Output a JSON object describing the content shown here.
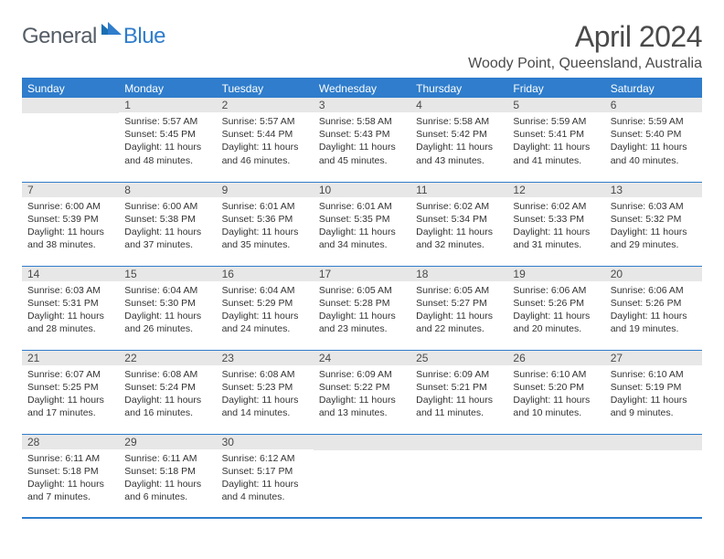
{
  "logo": {
    "general": "General",
    "blue": "Blue"
  },
  "title": "April 2024",
  "location": "Woody Point, Queensland, Australia",
  "weekdays": [
    "Sunday",
    "Monday",
    "Tuesday",
    "Wednesday",
    "Thursday",
    "Friday",
    "Saturday"
  ],
  "colors": {
    "accent": "#2f7dcc",
    "daynum_bg": "#e7e7e7",
    "text": "#333333",
    "header_text": "#4a4a4a"
  },
  "layout": {
    "first_weekday_index": 1,
    "weeks": 5
  },
  "days": [
    {
      "n": 1,
      "sunrise": "5:57 AM",
      "sunset": "5:45 PM",
      "daylight": "11 hours and 48 minutes."
    },
    {
      "n": 2,
      "sunrise": "5:57 AM",
      "sunset": "5:44 PM",
      "daylight": "11 hours and 46 minutes."
    },
    {
      "n": 3,
      "sunrise": "5:58 AM",
      "sunset": "5:43 PM",
      "daylight": "11 hours and 45 minutes."
    },
    {
      "n": 4,
      "sunrise": "5:58 AM",
      "sunset": "5:42 PM",
      "daylight": "11 hours and 43 minutes."
    },
    {
      "n": 5,
      "sunrise": "5:59 AM",
      "sunset": "5:41 PM",
      "daylight": "11 hours and 41 minutes."
    },
    {
      "n": 6,
      "sunrise": "5:59 AM",
      "sunset": "5:40 PM",
      "daylight": "11 hours and 40 minutes."
    },
    {
      "n": 7,
      "sunrise": "6:00 AM",
      "sunset": "5:39 PM",
      "daylight": "11 hours and 38 minutes."
    },
    {
      "n": 8,
      "sunrise": "6:00 AM",
      "sunset": "5:38 PM",
      "daylight": "11 hours and 37 minutes."
    },
    {
      "n": 9,
      "sunrise": "6:01 AM",
      "sunset": "5:36 PM",
      "daylight": "11 hours and 35 minutes."
    },
    {
      "n": 10,
      "sunrise": "6:01 AM",
      "sunset": "5:35 PM",
      "daylight": "11 hours and 34 minutes."
    },
    {
      "n": 11,
      "sunrise": "6:02 AM",
      "sunset": "5:34 PM",
      "daylight": "11 hours and 32 minutes."
    },
    {
      "n": 12,
      "sunrise": "6:02 AM",
      "sunset": "5:33 PM",
      "daylight": "11 hours and 31 minutes."
    },
    {
      "n": 13,
      "sunrise": "6:03 AM",
      "sunset": "5:32 PM",
      "daylight": "11 hours and 29 minutes."
    },
    {
      "n": 14,
      "sunrise": "6:03 AM",
      "sunset": "5:31 PM",
      "daylight": "11 hours and 28 minutes."
    },
    {
      "n": 15,
      "sunrise": "6:04 AM",
      "sunset": "5:30 PM",
      "daylight": "11 hours and 26 minutes."
    },
    {
      "n": 16,
      "sunrise": "6:04 AM",
      "sunset": "5:29 PM",
      "daylight": "11 hours and 24 minutes."
    },
    {
      "n": 17,
      "sunrise": "6:05 AM",
      "sunset": "5:28 PM",
      "daylight": "11 hours and 23 minutes."
    },
    {
      "n": 18,
      "sunrise": "6:05 AM",
      "sunset": "5:27 PM",
      "daylight": "11 hours and 22 minutes."
    },
    {
      "n": 19,
      "sunrise": "6:06 AM",
      "sunset": "5:26 PM",
      "daylight": "11 hours and 20 minutes."
    },
    {
      "n": 20,
      "sunrise": "6:06 AM",
      "sunset": "5:26 PM",
      "daylight": "11 hours and 19 minutes."
    },
    {
      "n": 21,
      "sunrise": "6:07 AM",
      "sunset": "5:25 PM",
      "daylight": "11 hours and 17 minutes."
    },
    {
      "n": 22,
      "sunrise": "6:08 AM",
      "sunset": "5:24 PM",
      "daylight": "11 hours and 16 minutes."
    },
    {
      "n": 23,
      "sunrise": "6:08 AM",
      "sunset": "5:23 PM",
      "daylight": "11 hours and 14 minutes."
    },
    {
      "n": 24,
      "sunrise": "6:09 AM",
      "sunset": "5:22 PM",
      "daylight": "11 hours and 13 minutes."
    },
    {
      "n": 25,
      "sunrise": "6:09 AM",
      "sunset": "5:21 PM",
      "daylight": "11 hours and 11 minutes."
    },
    {
      "n": 26,
      "sunrise": "6:10 AM",
      "sunset": "5:20 PM",
      "daylight": "11 hours and 10 minutes."
    },
    {
      "n": 27,
      "sunrise": "6:10 AM",
      "sunset": "5:19 PM",
      "daylight": "11 hours and 9 minutes."
    },
    {
      "n": 28,
      "sunrise": "6:11 AM",
      "sunset": "5:18 PM",
      "daylight": "11 hours and 7 minutes."
    },
    {
      "n": 29,
      "sunrise": "6:11 AM",
      "sunset": "5:18 PM",
      "daylight": "11 hours and 6 minutes."
    },
    {
      "n": 30,
      "sunrise": "6:12 AM",
      "sunset": "5:17 PM",
      "daylight": "11 hours and 4 minutes."
    }
  ],
  "labels": {
    "sunrise": "Sunrise:",
    "sunset": "Sunset:",
    "daylight": "Daylight:"
  }
}
